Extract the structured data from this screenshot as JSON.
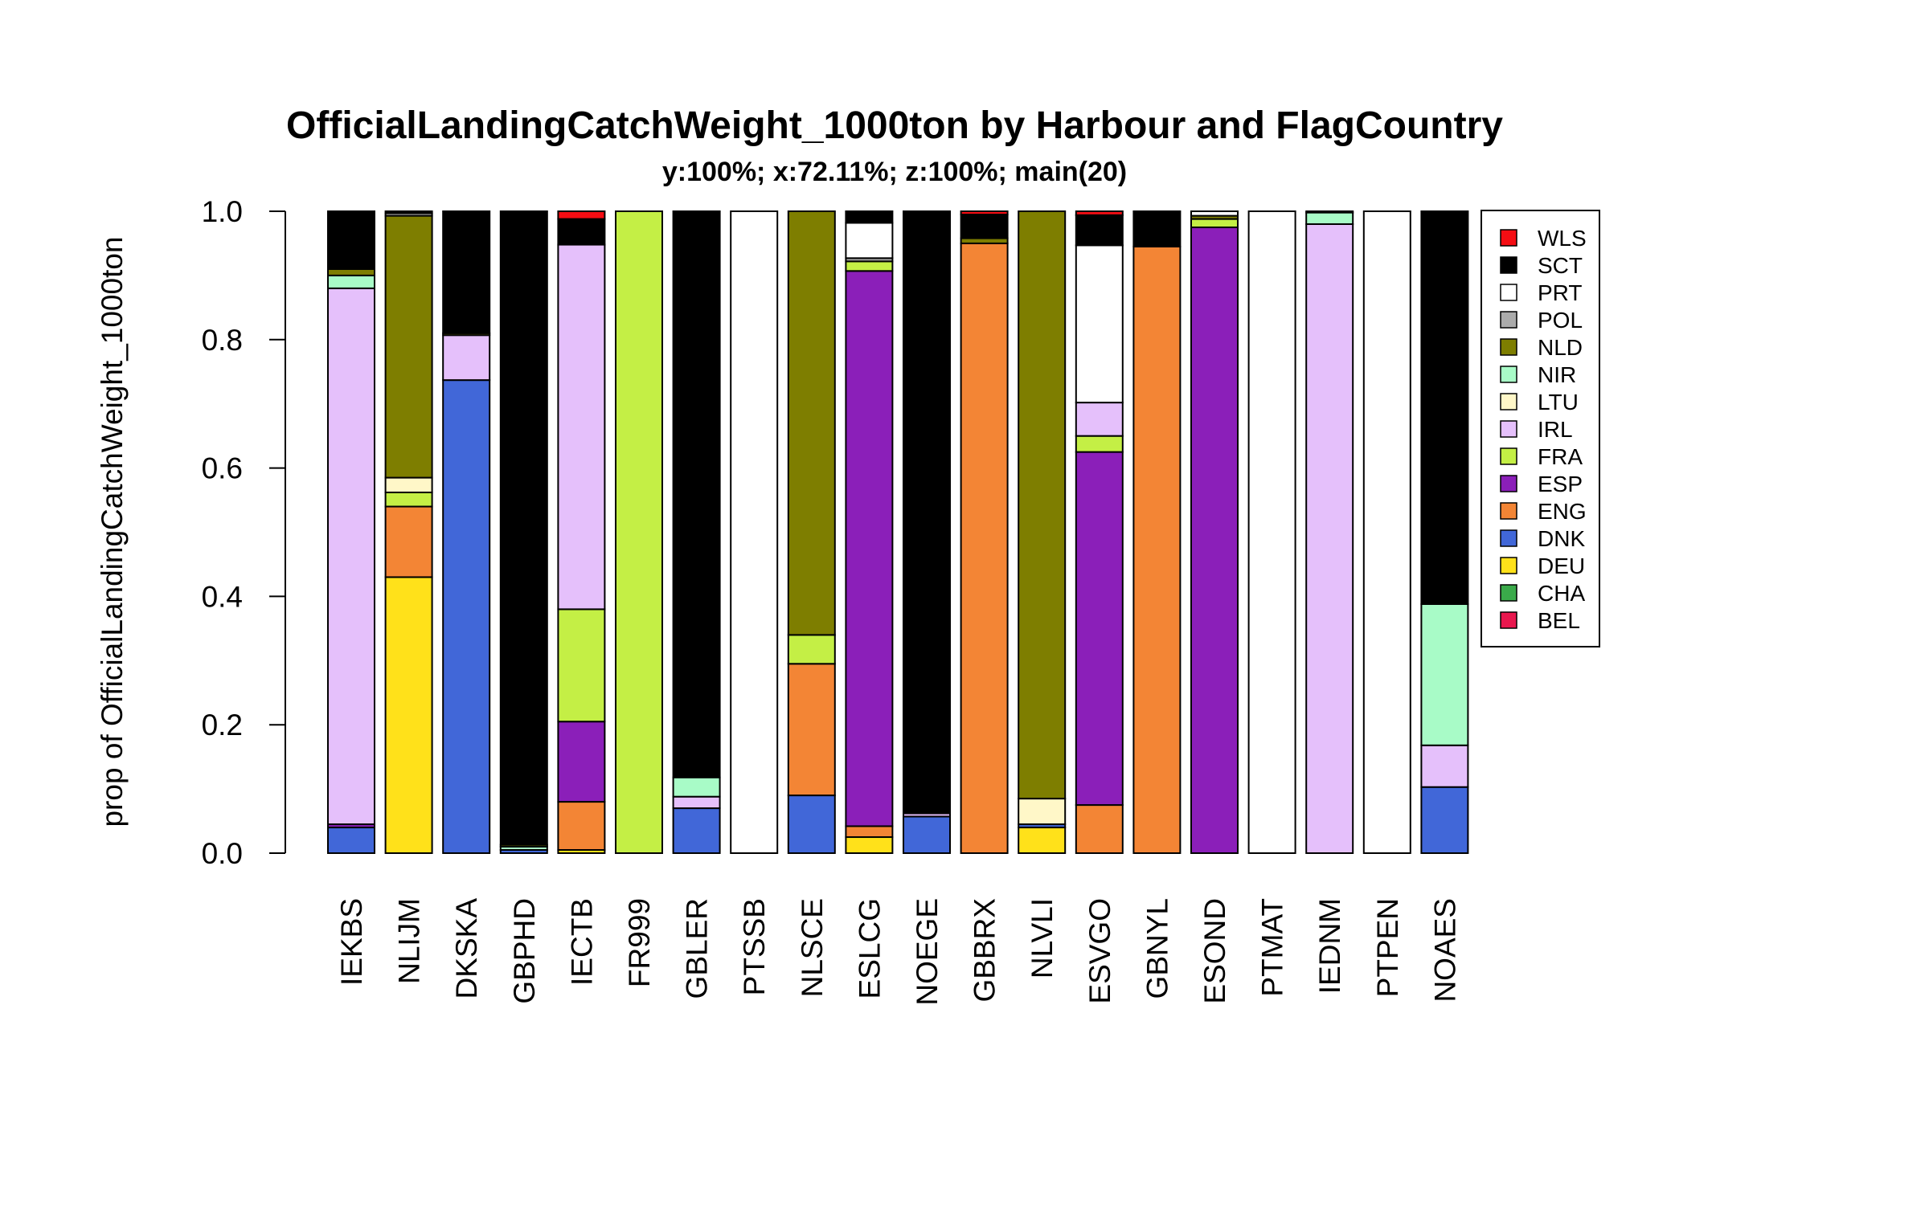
{
  "chart_data": {
    "type": "stacked-bar",
    "title": "OfficialLandingCatchWeight_1000ton by Harbour and FlagCountry",
    "subtitle": "y:100%; x:72.11%; z:100%; main(20)",
    "xlabel": "",
    "ylabel": "prop of OfficialLandingCatchWeight_1000ton",
    "ylim": [
      0,
      1
    ],
    "yticks": [
      "0.0",
      "0.2",
      "0.4",
      "0.6",
      "0.8",
      "1.0"
    ],
    "categories": [
      "IEKBS",
      "NLIJM",
      "DKSKA",
      "GBPHD",
      "IECTB",
      "FR999",
      "GBLER",
      "PTSSB",
      "NLSCE",
      "ESLCG",
      "NOEGE",
      "GBBRX",
      "NLVLI",
      "ESVGO",
      "GBNYL",
      "ESOND",
      "PTMAT",
      "IEDNM",
      "PTPEN",
      "NOAES"
    ],
    "legend_position": "right",
    "legend": [
      "WLS",
      "SCT",
      "PRT",
      "POL",
      "NLD",
      "NIR",
      "LTU",
      "IRL",
      "FRA",
      "ESP",
      "ENG",
      "DNK",
      "DEU",
      "CHA",
      "BEL"
    ],
    "colors": {
      "BEL": "#e8174e",
      "CHA": "#3aaa4a",
      "DEU": "#ffe11a",
      "DNK": "#4167d8",
      "ENG": "#f38535",
      "ESP": "#8b1fb9",
      "FRA": "#c4ef45",
      "IRL": "#e5c0fb",
      "LTU": "#fff7c8",
      "NIR": "#a8fbc7",
      "NLD": "#7e7e00",
      "POL": "#ababab",
      "PRT": "#ffffff",
      "SCT": "#000000",
      "WLS": "#f50d13"
    },
    "stack_order": [
      "BEL",
      "CHA",
      "DEU",
      "DNK",
      "ENG",
      "ESP",
      "FRA",
      "IRL",
      "LTU",
      "NIR",
      "NLD",
      "POL",
      "PRT",
      "SCT",
      "WLS"
    ],
    "series": [
      {
        "name": "BEL",
        "values": [
          0,
          0,
          0,
          0,
          0,
          0,
          0,
          0,
          0,
          0,
          0,
          0,
          0,
          0,
          0,
          0,
          0,
          0,
          0,
          0
        ]
      },
      {
        "name": "CHA",
        "values": [
          0,
          0,
          0,
          0,
          0,
          0,
          0,
          0,
          0,
          0,
          0,
          0,
          0,
          0,
          0,
          0,
          0,
          0,
          0,
          0
        ]
      },
      {
        "name": "DEU",
        "values": [
          0,
          0.43,
          0,
          0,
          0.005,
          0,
          0,
          0,
          0,
          0.025,
          0,
          0,
          0.04,
          0,
          0,
          0,
          0,
          0,
          0,
          0
        ]
      },
      {
        "name": "DNK",
        "values": [
          0.04,
          0,
          0.737,
          0.005,
          0,
          0,
          0.07,
          0,
          0.09,
          0,
          0.057,
          0,
          0.005,
          0,
          0,
          0,
          0,
          0,
          0,
          0.103
        ]
      },
      {
        "name": "ENG",
        "values": [
          0,
          0.11,
          0,
          0,
          0.075,
          0,
          0,
          0,
          0.205,
          0.017,
          0,
          0.95,
          0,
          0.075,
          0.945,
          0,
          0,
          0,
          0,
          0
        ]
      },
      {
        "name": "ESP",
        "values": [
          0.005,
          0,
          0,
          0,
          0.125,
          0,
          0,
          0,
          0,
          0.865,
          0,
          0,
          0,
          0.55,
          0,
          0.975,
          0,
          0,
          0,
          0
        ]
      },
      {
        "name": "FRA",
        "values": [
          0,
          0.022,
          0,
          0,
          0.175,
          1.0,
          0,
          0,
          0.045,
          0.015,
          0,
          0,
          0,
          0.025,
          0,
          0.013,
          0,
          0,
          0,
          0
        ]
      },
      {
        "name": "IRL",
        "values": [
          0.835,
          0,
          0.07,
          0,
          0.568,
          0,
          0.018,
          0,
          0,
          0,
          0.005,
          0,
          0,
          0.052,
          0,
          0,
          0,
          0.98,
          0,
          0.065
        ]
      },
      {
        "name": "LTU",
        "values": [
          0,
          0.023,
          0,
          0,
          0,
          0,
          0,
          0,
          0,
          0,
          0,
          0,
          0.04,
          0,
          0,
          0,
          0,
          0,
          0,
          0
        ]
      },
      {
        "name": "NIR",
        "values": [
          0.02,
          0,
          0,
          0.005,
          0,
          0,
          0.03,
          0,
          0,
          0,
          0,
          0,
          0,
          0,
          0,
          0,
          0,
          0.018,
          0,
          0.22
        ]
      },
      {
        "name": "NLD",
        "values": [
          0.01,
          0.408,
          0.003,
          0.003,
          0,
          0,
          0,
          0,
          0.66,
          0,
          0,
          0.008,
          0.915,
          0,
          0,
          0.005,
          0,
          0,
          0,
          0
        ]
      },
      {
        "name": "POL",
        "values": [
          0,
          0.004,
          0,
          0,
          0,
          0,
          0,
          0,
          0,
          0.005,
          0,
          0,
          0,
          0,
          0,
          0,
          0,
          0,
          0,
          0
        ]
      },
      {
        "name": "PRT",
        "values": [
          0,
          0,
          0,
          0,
          0,
          0,
          0,
          1.0,
          0,
          0.055,
          0,
          0,
          0,
          0.245,
          0,
          0.007,
          1.0,
          0,
          1.0,
          0
        ]
      },
      {
        "name": "SCT",
        "values": [
          0.09,
          0.003,
          0.19,
          0.987,
          0.04,
          0,
          0.882,
          0,
          0,
          0.018,
          0.938,
          0.037,
          0,
          0.047,
          0.055,
          0,
          0,
          0.002,
          0,
          0.612
        ]
      },
      {
        "name": "WLS",
        "values": [
          0,
          0,
          0,
          0,
          0.012,
          0,
          0,
          0,
          0,
          0,
          0,
          0.005,
          0,
          0.006,
          0,
          0,
          0,
          0,
          0,
          0
        ]
      }
    ]
  }
}
